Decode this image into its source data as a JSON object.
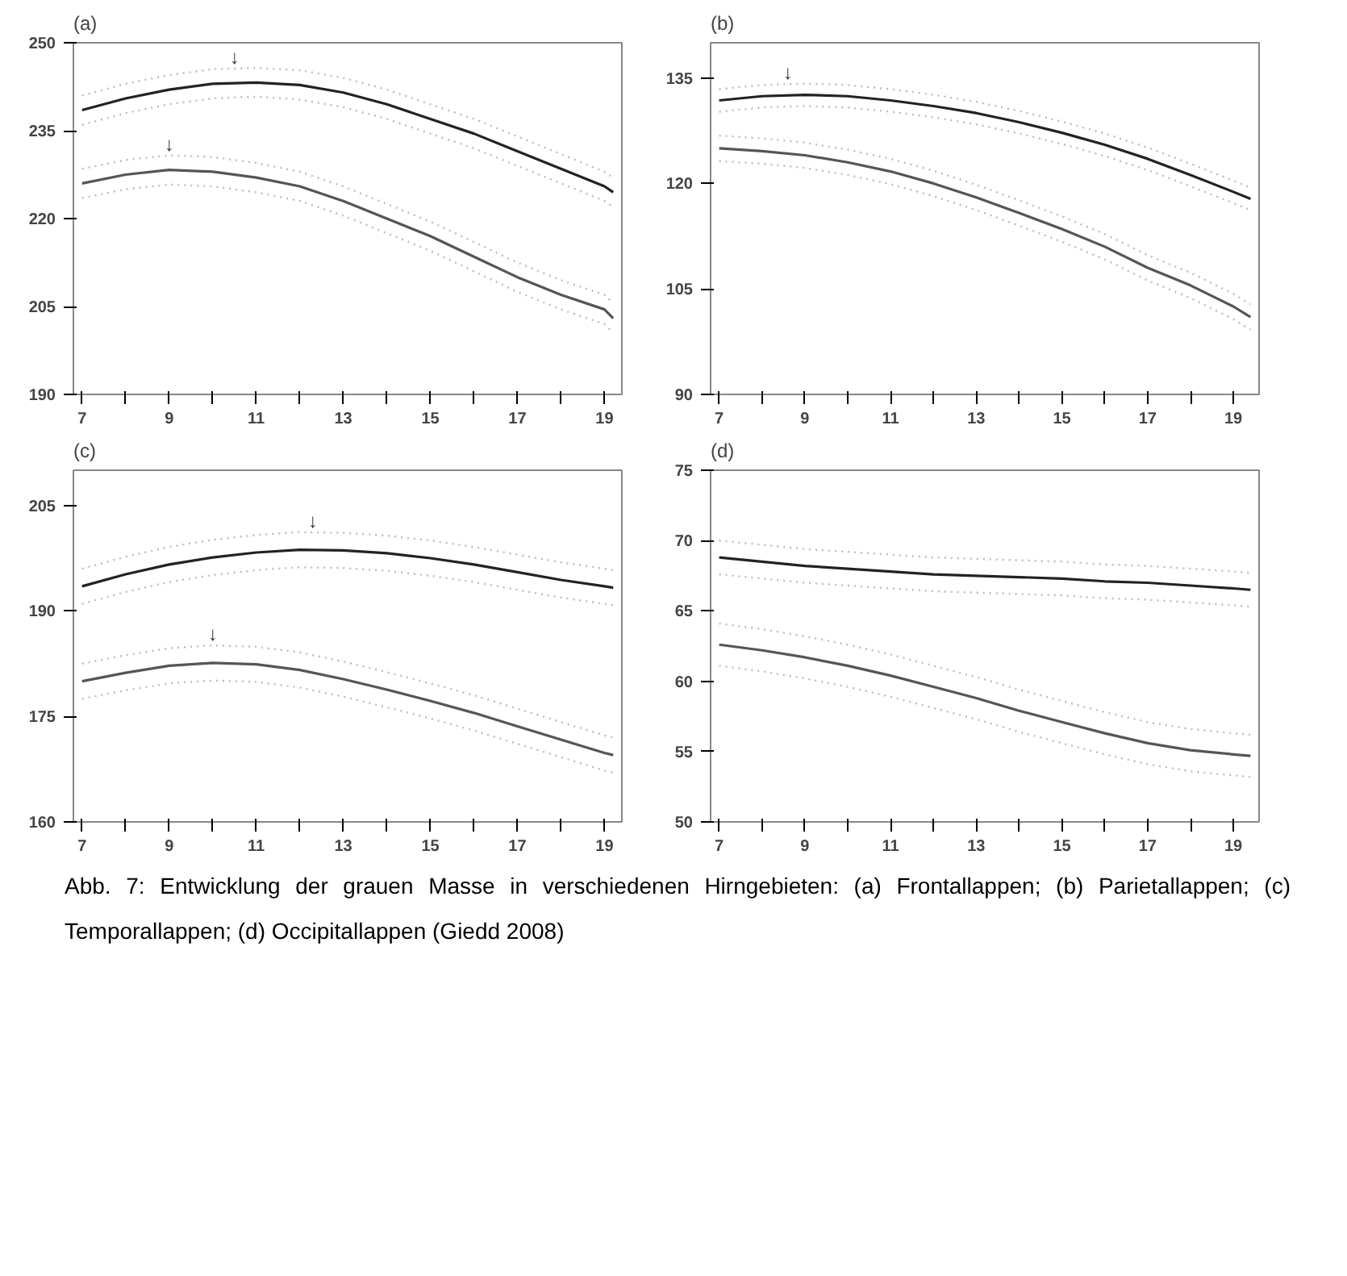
{
  "chart_data": [
    {
      "type": "line",
      "title": "(a)",
      "x": [
        7,
        8,
        9,
        10,
        11,
        12,
        13,
        14,
        15,
        16,
        17,
        18,
        19,
        19.2
      ],
      "xlim": [
        6.8,
        19.4
      ],
      "ylim": [
        190,
        250
      ],
      "yticks": [
        190,
        205,
        220,
        235,
        250
      ],
      "xticks": [
        7,
        {
          "value": 8,
          "label": null
        },
        9,
        {
          "value": 10,
          "label": null
        },
        11,
        {
          "value": 12,
          "label": null
        },
        13,
        {
          "value": 14,
          "label": null
        },
        15,
        {
          "value": 16,
          "label": null
        },
        17,
        {
          "value": 18,
          "label": null
        },
        19
      ],
      "grid": false,
      "series": [
        {
          "color": "#bbbbbb",
          "line_style": "dotted",
          "values": [
            236,
            238,
            239.5,
            240.5,
            240.8,
            240.3,
            239,
            237,
            234.5,
            232,
            229,
            226,
            223,
            222
          ]
        },
        {
          "color": "#bbbbbb",
          "line_style": "dotted",
          "values": [
            241,
            243,
            244.5,
            245.5,
            245.7,
            245.3,
            244,
            242,
            239.5,
            237,
            234,
            231,
            228,
            227
          ]
        },
        {
          "color": "#222222",
          "values": [
            238.5,
            240.5,
            242,
            243,
            243.2,
            242.8,
            241.5,
            239.5,
            237,
            234.5,
            231.5,
            228.5,
            225.5,
            224.5
          ]
        },
        {
          "color": "#bbbbbb",
          "line_style": "dotted",
          "values": [
            223.5,
            225,
            225.8,
            225.5,
            224.5,
            223,
            220.5,
            217.5,
            214.5,
            211,
            207.5,
            204.5,
            202,
            200.5
          ]
        },
        {
          "color": "#bbbbbb",
          "line_style": "dotted",
          "values": [
            228.5,
            230,
            230.8,
            230.5,
            229.5,
            228,
            225.5,
            222.5,
            219.5,
            216,
            212.5,
            209.5,
            207,
            205.5
          ]
        },
        {
          "color": "#555555",
          "values": [
            226,
            227.5,
            228.3,
            228,
            227,
            225.5,
            223,
            220,
            217,
            213.5,
            210,
            207,
            204.5,
            203
          ]
        }
      ],
      "annotations": [
        {
          "text": "↓",
          "x": 10.5,
          "y": 245.6
        },
        {
          "text": "↓",
          "x": 9,
          "y": 230.8
        }
      ]
    },
    {
      "type": "line",
      "title": "(b)",
      "x": [
        7,
        8,
        9,
        10,
        11,
        12,
        13,
        14,
        15,
        16,
        17,
        18,
        19,
        19.4
      ],
      "xlim": [
        6.8,
        19.6
      ],
      "ylim": [
        90,
        140
      ],
      "yticks": [
        90,
        105,
        120,
        135
      ],
      "xticks": [
        7,
        {
          "value": 8,
          "label": null
        },
        9,
        {
          "value": 10,
          "label": null
        },
        11,
        {
          "value": 12,
          "label": null
        },
        13,
        {
          "value": 14,
          "label": null
        },
        15,
        {
          "value": 16,
          "label": null
        },
        17,
        {
          "value": 18,
          "label": null
        },
        19
      ],
      "grid": false,
      "series": [
        {
          "color": "#bbbbbb",
          "line_style": "dotted",
          "values": [
            130.2,
            130.8,
            131,
            130.8,
            130.2,
            129.4,
            128.4,
            127.1,
            125.6,
            123.9,
            121.9,
            119.6,
            117.2,
            116.2
          ]
        },
        {
          "color": "#bbbbbb",
          "line_style": "dotted",
          "values": [
            133.4,
            134,
            134.2,
            134,
            133.4,
            132.6,
            131.6,
            130.3,
            128.8,
            127.1,
            125.1,
            122.8,
            120.4,
            119.4
          ]
        },
        {
          "color": "#222222",
          "values": [
            131.8,
            132.4,
            132.6,
            132.4,
            131.8,
            131,
            130,
            128.7,
            127.2,
            125.5,
            123.5,
            121.2,
            118.8,
            117.8
          ]
        },
        {
          "color": "#bbbbbb",
          "line_style": "dotted",
          "values": [
            123.2,
            122.8,
            122.2,
            121.2,
            119.9,
            118.2,
            116.2,
            114,
            111.7,
            109.2,
            106.2,
            103.7,
            100.7,
            99.2
          ]
        },
        {
          "color": "#bbbbbb",
          "line_style": "dotted",
          "values": [
            126.8,
            126.4,
            125.8,
            124.8,
            123.5,
            121.8,
            119.8,
            117.6,
            115.3,
            112.8,
            109.8,
            107.3,
            104.3,
            102.8
          ]
        },
        {
          "color": "#555555",
          "values": [
            125,
            124.6,
            124,
            123,
            121.7,
            120,
            118,
            115.8,
            113.5,
            111,
            108,
            105.5,
            102.5,
            101
          ]
        }
      ],
      "annotations": [
        {
          "text": "↓",
          "x": 8.6,
          "y": 134.1
        }
      ]
    },
    {
      "type": "line",
      "title": "(c)",
      "x": [
        7,
        8,
        9,
        10,
        11,
        12,
        13,
        14,
        15,
        16,
        17,
        18,
        19,
        19.2
      ],
      "xlim": [
        6.8,
        19.4
      ],
      "ylim": [
        160,
        210
      ],
      "yticks": [
        160,
        175,
        190,
        205
      ],
      "xticks": [
        7,
        {
          "value": 8,
          "label": null
        },
        9,
        {
          "value": 10,
          "label": null
        },
        11,
        {
          "value": 12,
          "label": null
        },
        13,
        {
          "value": 14,
          "label": null
        },
        15,
        {
          "value": 16,
          "label": null
        },
        17,
        {
          "value": 18,
          "label": null
        },
        19
      ],
      "grid": false,
      "series": [
        {
          "color": "#bbbbbb",
          "line_style": "dotted",
          "values": [
            191,
            192.7,
            194.1,
            195.1,
            195.8,
            196.2,
            196.1,
            195.7,
            195,
            194.1,
            193,
            191.9,
            191,
            190.8
          ]
        },
        {
          "color": "#bbbbbb",
          "line_style": "dotted",
          "values": [
            196,
            197.7,
            199.1,
            200.1,
            200.8,
            201.2,
            201.1,
            200.7,
            200,
            199.1,
            198,
            196.9,
            196,
            195.8
          ]
        },
        {
          "color": "#222222",
          "values": [
            193.5,
            195.2,
            196.6,
            197.6,
            198.3,
            198.7,
            198.6,
            198.2,
            197.5,
            196.6,
            195.5,
            194.4,
            193.5,
            193.3
          ]
        },
        {
          "color": "#bbbbbb",
          "line_style": "dotted",
          "values": [
            177.5,
            178.7,
            179.7,
            180.1,
            179.9,
            179.1,
            177.8,
            176.3,
            174.7,
            173,
            171.1,
            169.2,
            167.3,
            167
          ]
        },
        {
          "color": "#bbbbbb",
          "line_style": "dotted",
          "values": [
            182.5,
            183.7,
            184.7,
            185.1,
            184.9,
            184.1,
            182.8,
            181.3,
            179.7,
            178,
            176.1,
            174.2,
            172.3,
            172
          ]
        },
        {
          "color": "#555555",
          "values": [
            180,
            181.2,
            182.2,
            182.6,
            182.4,
            181.6,
            180.3,
            178.8,
            177.2,
            175.5,
            173.6,
            171.7,
            169.8,
            169.5
          ]
        }
      ],
      "annotations": [
        {
          "text": "↓",
          "x": 12.3,
          "y": 201.2
        },
        {
          "text": "↓",
          "x": 10,
          "y": 185.1
        }
      ]
    },
    {
      "type": "line",
      "title": "(d)",
      "x": [
        7,
        8,
        9,
        10,
        11,
        12,
        13,
        14,
        15,
        16,
        17,
        18,
        19,
        19.4
      ],
      "xlim": [
        6.8,
        19.6
      ],
      "ylim": [
        50,
        75
      ],
      "yticks": [
        50,
        55,
        60,
        65,
        70,
        75
      ],
      "xticks": [
        7,
        {
          "value": 8,
          "label": null
        },
        9,
        {
          "value": 10,
          "label": null
        },
        11,
        {
          "value": 12,
          "label": null
        },
        13,
        {
          "value": 14,
          "label": null
        },
        15,
        {
          "value": 16,
          "label": null
        },
        17,
        {
          "value": 18,
          "label": null
        },
        19
      ],
      "grid": false,
      "series": [
        {
          "color": "#bbbbbb",
          "line_style": "dotted",
          "values": [
            67.6,
            67.3,
            67,
            66.8,
            66.6,
            66.4,
            66.3,
            66.2,
            66.1,
            65.9,
            65.8,
            65.6,
            65.4,
            65.3
          ]
        },
        {
          "color": "#bbbbbb",
          "line_style": "dotted",
          "values": [
            70,
            69.7,
            69.4,
            69.2,
            69,
            68.8,
            68.7,
            68.6,
            68.5,
            68.3,
            68.2,
            68,
            67.8,
            67.7
          ]
        },
        {
          "color": "#222222",
          "values": [
            68.8,
            68.5,
            68.2,
            68,
            67.8,
            67.6,
            67.5,
            67.4,
            67.3,
            67.1,
            67,
            66.8,
            66.6,
            66.5
          ]
        },
        {
          "color": "#bbbbbb",
          "line_style": "dotted",
          "values": [
            61.1,
            60.7,
            60.2,
            59.6,
            58.9,
            58.1,
            57.3,
            56.4,
            55.6,
            54.8,
            54.1,
            53.6,
            53.3,
            53.2
          ]
        },
        {
          "color": "#bbbbbb",
          "line_style": "dotted",
          "values": [
            64.1,
            63.7,
            63.2,
            62.6,
            61.9,
            61.1,
            60.3,
            59.4,
            58.6,
            57.8,
            57.1,
            56.6,
            56.3,
            56.2
          ]
        },
        {
          "color": "#555555",
          "values": [
            62.6,
            62.2,
            61.7,
            61.1,
            60.4,
            59.6,
            58.8,
            57.9,
            57.1,
            56.3,
            55.6,
            55.1,
            54.8,
            54.7
          ]
        }
      ],
      "annotations": [
        "Abb. 7: Entwicklung der grauen Masse in verschiedenen Hirngebieten: (a) Frontallappen;  (b) Parietallappen; (c) Temporallappen; (d) Occipitallappen (Giedd 2008)"
      ]
    }
  ]
}
